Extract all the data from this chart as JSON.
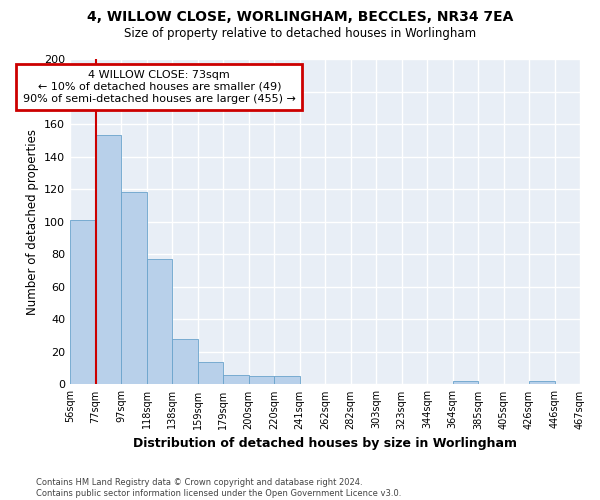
{
  "title1": "4, WILLOW CLOSE, WORLINGHAM, BECCLES, NR34 7EA",
  "title2": "Size of property relative to detached houses in Worlingham",
  "xlabel": "Distribution of detached houses by size in Worlingham",
  "ylabel": "Number of detached properties",
  "bin_labels": [
    "56sqm",
    "77sqm",
    "97sqm",
    "118sqm",
    "138sqm",
    "159sqm",
    "179sqm",
    "200sqm",
    "220sqm",
    "241sqm",
    "262sqm",
    "282sqm",
    "303sqm",
    "323sqm",
    "344sqm",
    "364sqm",
    "385sqm",
    "405sqm",
    "426sqm",
    "446sqm",
    "467sqm"
  ],
  "bar_heights": [
    101,
    153,
    118,
    77,
    28,
    14,
    6,
    5,
    5,
    0,
    0,
    0,
    0,
    0,
    0,
    2,
    0,
    0,
    2,
    0
  ],
  "bar_color": "#b8d0ea",
  "bar_edge_color": "#6aa3cc",
  "annotation_line1": "4 WILLOW CLOSE: 73sqm",
  "annotation_line2": "← 10% of detached houses are smaller (49)",
  "annotation_line3": "90% of semi-detached houses are larger (455) →",
  "annotation_box_facecolor": "#ffffff",
  "annotation_box_edgecolor": "#cc0000",
  "vline_color": "#cc0000",
  "vline_x_index": 0,
  "ylim": [
    0,
    200
  ],
  "yticks": [
    0,
    20,
    40,
    60,
    80,
    100,
    120,
    140,
    160,
    180,
    200
  ],
  "background_color": "#e8eef6",
  "grid_color": "#ffffff",
  "footnote_line1": "Contains HM Land Registry data © Crown copyright and database right 2024.",
  "footnote_line2": "Contains public sector information licensed under the Open Government Licence v3.0."
}
